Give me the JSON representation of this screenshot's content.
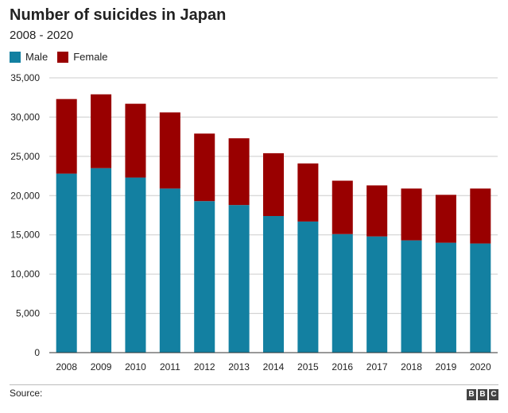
{
  "header": {
    "title": "Number of suicides in Japan",
    "subtitle": "2008 - 2020"
  },
  "footer": {
    "source_label": "Source:",
    "logo_letters": [
      "B",
      "B",
      "C"
    ]
  },
  "colors": {
    "male": "#1380A1",
    "female": "#990000",
    "grid": "#cccccc",
    "axis": "#333333"
  },
  "chart_data": {
    "type": "bar",
    "stacked": true,
    "categories": [
      "2008",
      "2009",
      "2010",
      "2011",
      "2012",
      "2013",
      "2014",
      "2015",
      "2016",
      "2017",
      "2018",
      "2019",
      "2020"
    ],
    "series": [
      {
        "name": "Male",
        "color": "#1380A1",
        "values": [
          22800,
          23500,
          22300,
          20900,
          19300,
          18800,
          17400,
          16700,
          15100,
          14800,
          14300,
          14000,
          13900
        ]
      },
      {
        "name": "Female",
        "color": "#990000",
        "values": [
          9500,
          9400,
          9400,
          9700,
          8600,
          8500,
          8000,
          7400,
          6800,
          6500,
          6600,
          6100,
          7000
        ]
      }
    ],
    "y_ticks": [
      "0",
      "5,000",
      "10,000",
      "15,000",
      "20,000",
      "25,000",
      "30,000",
      "35,000"
    ],
    "ylim": [
      0,
      35000
    ],
    "y_step": 5000,
    "grid": true,
    "legend": "top-left",
    "xlabel": "",
    "ylabel": ""
  }
}
